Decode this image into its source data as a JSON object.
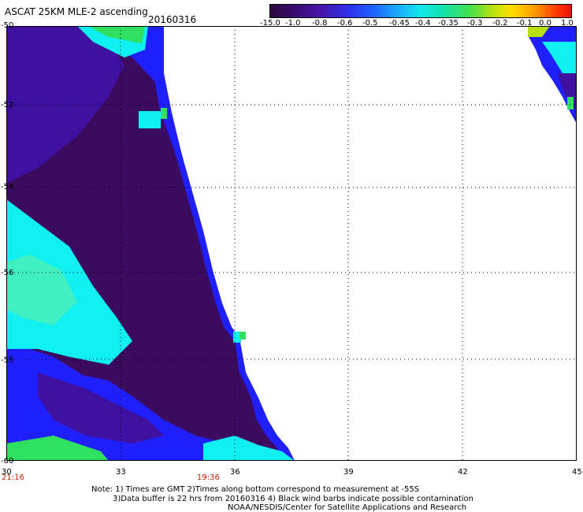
{
  "header": {
    "title": "ASCAT 25KM MLE-2 ascending",
    "date": "20160316"
  },
  "colorbar": {
    "labels": [
      "-15.0",
      "-1.0",
      "-0.8",
      "-0.6",
      "-0.5",
      "-0.45",
      "-0.4",
      "-0.35",
      "-0.3",
      "-0.2",
      "-0.1",
      "0.0",
      "1.0"
    ]
  },
  "axes": {
    "lat_labels": [
      "-50",
      "-52",
      "-54",
      "-56",
      "-58",
      "-60"
    ],
    "lon_labels": [
      "30",
      "33",
      "36",
      "39",
      "42",
      "45"
    ],
    "time_labels": [
      "21:16",
      "19:36"
    ]
  },
  "colors": {
    "dark_purple": "#3a0b5e",
    "purple": "#4010a0",
    "blue": "#2020ff",
    "cyan": "#10f0f0",
    "green": "#30e060",
    "time_red": "#cc2200"
  },
  "notes": {
    "line1": "Note: 1) Times are GMT 2)Times along bottom correspond to measurement at -55S",
    "line2": "3)Data buffer is 22 hrs from 20160316 4) Black wind barbs indicate possible contamination",
    "line3": "NOAA/NESDIS/Center for Satellite Applications and Research"
  }
}
